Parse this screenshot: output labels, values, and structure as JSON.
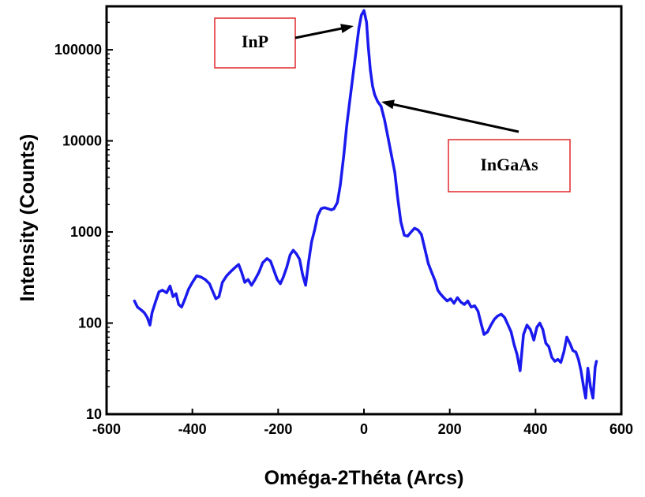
{
  "chart_data": {
    "type": "line",
    "xlabel": "Oméga-2Théta (Arcs)",
    "ylabel": "Intensity (Counts)",
    "xlim": [
      -600,
      600
    ],
    "ylim": [
      10,
      300000
    ],
    "yscale": "log",
    "x_ticks": [
      "-600",
      "-400",
      "-200",
      "0",
      "200",
      "400",
      "600"
    ],
    "y_ticks": [
      "10",
      "100",
      "1000",
      "10000",
      "100000"
    ],
    "grid": false,
    "series": [
      {
        "color": "#1a1aee",
        "points": [
          [
            -535,
            175
          ],
          [
            -528,
            150
          ],
          [
            -520,
            140
          ],
          [
            -512,
            130
          ],
          [
            -505,
            115
          ],
          [
            -499,
            95
          ],
          [
            -494,
            130
          ],
          [
            -486,
            170
          ],
          [
            -478,
            220
          ],
          [
            -470,
            230
          ],
          [
            -460,
            215
          ],
          [
            -452,
            255
          ],
          [
            -445,
            195
          ],
          [
            -438,
            210
          ],
          [
            -432,
            160
          ],
          [
            -425,
            150
          ],
          [
            -417,
            185
          ],
          [
            -409,
            235
          ],
          [
            -400,
            280
          ],
          [
            -390,
            330
          ],
          [
            -380,
            320
          ],
          [
            -370,
            300
          ],
          [
            -360,
            270
          ],
          [
            -352,
            220
          ],
          [
            -345,
            185
          ],
          [
            -338,
            195
          ],
          [
            -330,
            280
          ],
          [
            -320,
            330
          ],
          [
            -310,
            370
          ],
          [
            -300,
            410
          ],
          [
            -292,
            440
          ],
          [
            -285,
            360
          ],
          [
            -278,
            280
          ],
          [
            -270,
            300
          ],
          [
            -262,
            260
          ],
          [
            -254,
            300
          ],
          [
            -245,
            360
          ],
          [
            -236,
            460
          ],
          [
            -226,
            510
          ],
          [
            -218,
            480
          ],
          [
            -210,
            380
          ],
          [
            -202,
            300
          ],
          [
            -195,
            270
          ],
          [
            -188,
            320
          ],
          [
            -180,
            410
          ],
          [
            -172,
            560
          ],
          [
            -165,
            630
          ],
          [
            -158,
            580
          ],
          [
            -150,
            500
          ],
          [
            -143,
            340
          ],
          [
            -136,
            260
          ],
          [
            -129,
            470
          ],
          [
            -122,
            780
          ],
          [
            -115,
            1050
          ],
          [
            -108,
            1500
          ],
          [
            -100,
            1800
          ],
          [
            -92,
            1850
          ],
          [
            -84,
            1800
          ],
          [
            -76,
            1750
          ],
          [
            -70,
            1800
          ],
          [
            -62,
            2100
          ],
          [
            -55,
            3300
          ],
          [
            -47,
            7000
          ],
          [
            -40,
            15000
          ],
          [
            -32,
            30000
          ],
          [
            -25,
            55000
          ],
          [
            -18,
            100000
          ],
          [
            -12,
            170000
          ],
          [
            -6,
            240000
          ],
          [
            0,
            270000
          ],
          [
            6,
            200000
          ],
          [
            10,
            110000
          ],
          [
            15,
            60000
          ],
          [
            20,
            40000
          ],
          [
            25,
            32000
          ],
          [
            32,
            27000
          ],
          [
            40,
            24000
          ],
          [
            48,
            17000
          ],
          [
            56,
            11000
          ],
          [
            64,
            7000
          ],
          [
            72,
            4500
          ],
          [
            78,
            2500
          ],
          [
            86,
            1300
          ],
          [
            94,
            920
          ],
          [
            102,
            900
          ],
          [
            110,
            1000
          ],
          [
            118,
            1100
          ],
          [
            126,
            1050
          ],
          [
            134,
            940
          ],
          [
            142,
            650
          ],
          [
            150,
            450
          ],
          [
            158,
            360
          ],
          [
            166,
            290
          ],
          [
            172,
            230
          ],
          [
            178,
            210
          ],
          [
            186,
            190
          ],
          [
            194,
            175
          ],
          [
            202,
            185
          ],
          [
            210,
            165
          ],
          [
            218,
            190
          ],
          [
            226,
            170
          ],
          [
            234,
            160
          ],
          [
            242,
            175
          ],
          [
            250,
            150
          ],
          [
            258,
            155
          ],
          [
            266,
            135
          ],
          [
            274,
            95
          ],
          [
            280,
            75
          ],
          [
            288,
            80
          ],
          [
            296,
            95
          ],
          [
            304,
            110
          ],
          [
            312,
            120
          ],
          [
            320,
            125
          ],
          [
            328,
            115
          ],
          [
            336,
            95
          ],
          [
            343,
            80
          ],
          [
            350,
            58
          ],
          [
            357,
            45
          ],
          [
            364,
            30
          ],
          [
            372,
            75
          ],
          [
            380,
            95
          ],
          [
            388,
            85
          ],
          [
            396,
            65
          ],
          [
            403,
            90
          ],
          [
            410,
            100
          ],
          [
            417,
            85
          ],
          [
            424,
            60
          ],
          [
            431,
            55
          ],
          [
            438,
            42
          ],
          [
            445,
            38
          ],
          [
            452,
            40
          ],
          [
            459,
            37
          ],
          [
            466,
            48
          ],
          [
            473,
            70
          ],
          [
            480,
            60
          ],
          [
            487,
            50
          ],
          [
            494,
            48
          ],
          [
            500,
            40
          ],
          [
            506,
            30
          ],
          [
            512,
            20
          ],
          [
            517,
            15
          ],
          [
            522,
            32
          ],
          [
            528,
            20
          ],
          [
            534,
            15
          ],
          [
            539,
            33
          ],
          [
            542,
            38
          ]
        ]
      }
    ],
    "annotations": [
      {
        "text": "InP",
        "target": [
          0,
          240000
        ]
      },
      {
        "text": "InGaAs",
        "target": [
          40,
          25000
        ]
      }
    ]
  }
}
